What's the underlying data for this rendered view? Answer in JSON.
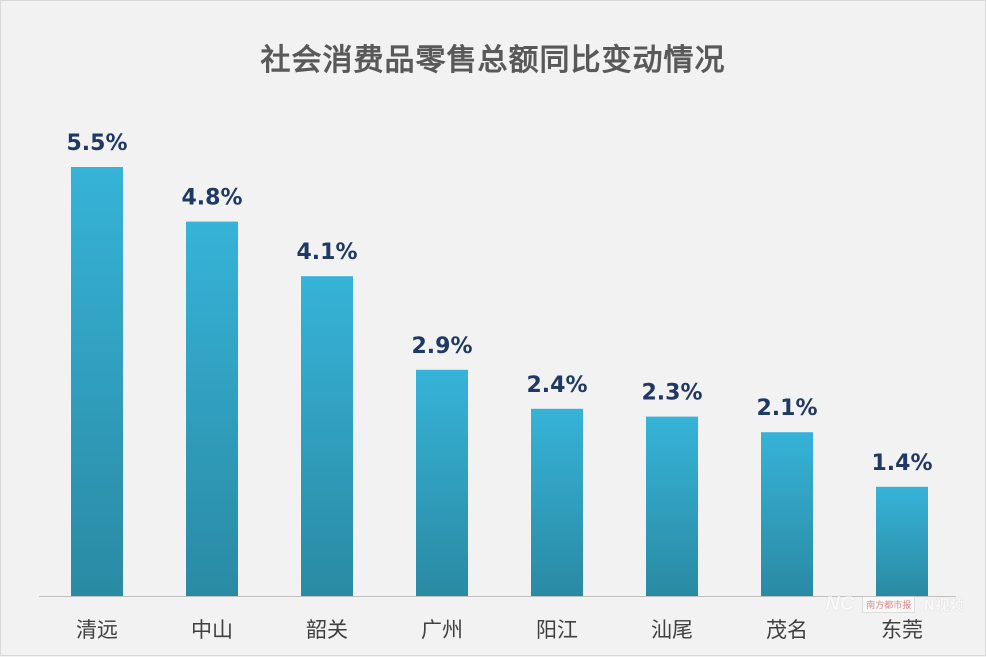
{
  "chart_data": {
    "type": "bar",
    "title": "社会消费品零售总额同比变动情况",
    "categories": [
      "清远",
      "中山",
      "韶关",
      "广州",
      "阳江",
      "汕尾",
      "茂名",
      "东莞"
    ],
    "values": [
      5.5,
      4.8,
      4.1,
      2.9,
      2.4,
      2.3,
      2.1,
      1.4
    ],
    "value_labels": [
      "5.5%",
      "4.8%",
      "4.1%",
      "2.9%",
      "2.4%",
      "2.3%",
      "2.1%",
      "1.4%"
    ],
    "xlabel": "",
    "ylabel": "",
    "ylim": [
      0,
      5.5
    ],
    "grid": false,
    "legend": "none",
    "bar_color_top": "#36b3d8",
    "bar_color_bottom": "#2a8aa3",
    "label_color": "#1f3864",
    "category_color": "#404040",
    "axis_color": "#bfbfbf"
  },
  "watermark": {
    "logo": "NC",
    "box_text": "南方都市报",
    "n_text": "N视频"
  }
}
